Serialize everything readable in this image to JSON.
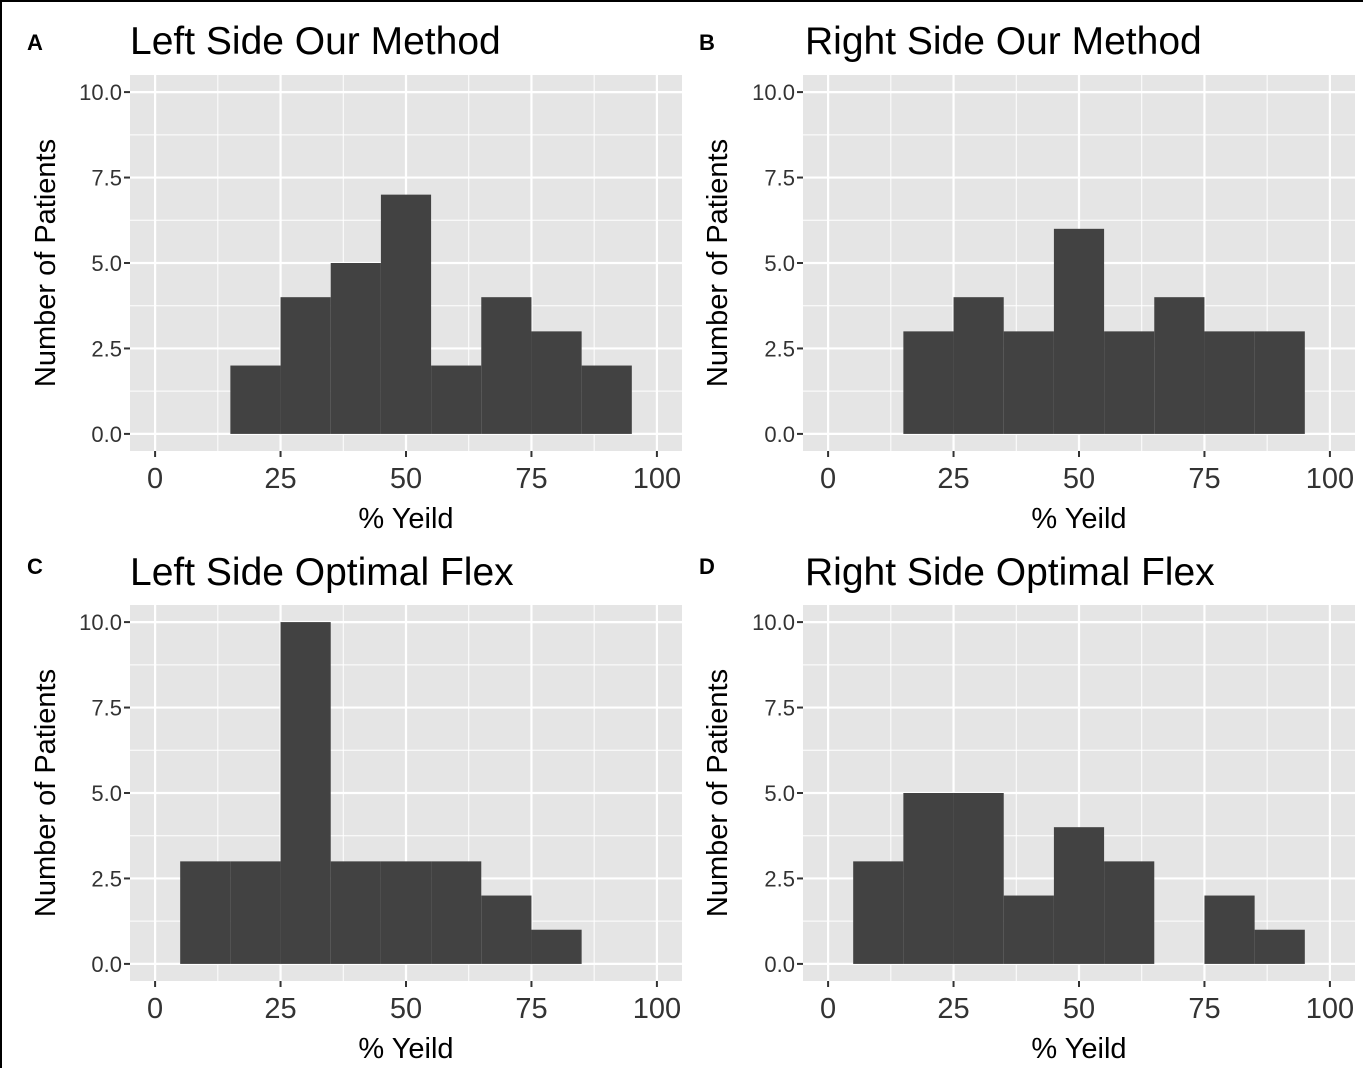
{
  "figure": {
    "background": "#ffffff",
    "panel_background": "#e5e5e5",
    "grid_color": "#ffffff",
    "bar_color": "#424242",
    "text_color": "#000000",
    "tick_color": "#333333"
  },
  "chart_data": [
    {
      "type": "bar",
      "letter": "A",
      "title": "Left Side Our Method",
      "xlabel": "% Yeild",
      "ylabel": "Number of Patients",
      "xlim": [
        -5,
        105
      ],
      "ylim": [
        -0.5,
        10.5
      ],
      "xticks": [
        0,
        25,
        50,
        75,
        100
      ],
      "xtick_labels": [
        "0",
        "25",
        "50",
        "75",
        "100"
      ],
      "yticks": [
        0,
        2.5,
        5,
        7.5,
        10
      ],
      "ytick_labels": [
        "0.0",
        "2.5",
        "5.0",
        "7.5",
        "10.0"
      ],
      "bin_width": 10,
      "bin_centers": [
        20,
        30,
        40,
        50,
        60,
        70,
        80,
        90
      ],
      "values": [
        2,
        4,
        5,
        7,
        2,
        4,
        3,
        2
      ],
      "grid": true
    },
    {
      "type": "bar",
      "letter": "B",
      "title": "Right Side Our Method",
      "xlabel": "% Yeild",
      "ylabel": "Number of Patients",
      "xlim": [
        -5,
        105
      ],
      "ylim": [
        -0.5,
        10.5
      ],
      "xticks": [
        0,
        25,
        50,
        75,
        100
      ],
      "xtick_labels": [
        "0",
        "25",
        "50",
        "75",
        "100"
      ],
      "yticks": [
        0,
        2.5,
        5,
        7.5,
        10
      ],
      "ytick_labels": [
        "0.0",
        "2.5",
        "5.0",
        "7.5",
        "10.0"
      ],
      "bin_width": 10,
      "bin_centers": [
        20,
        30,
        40,
        50,
        60,
        70,
        80,
        90
      ],
      "values": [
        3,
        4,
        3,
        6,
        3,
        4,
        3,
        3
      ],
      "grid": true
    },
    {
      "type": "bar",
      "letter": "C",
      "title": "Left Side Optimal Flex",
      "xlabel": "% Yeild",
      "ylabel": "Number of Patients",
      "xlim": [
        -5,
        105
      ],
      "ylim": [
        -0.5,
        10.5
      ],
      "xticks": [
        0,
        25,
        50,
        75,
        100
      ],
      "xtick_labels": [
        "0",
        "25",
        "50",
        "75",
        "100"
      ],
      "yticks": [
        0,
        2.5,
        5,
        7.5,
        10
      ],
      "ytick_labels": [
        "0.0",
        "2.5",
        "5.0",
        "7.5",
        "10.0"
      ],
      "bin_width": 10,
      "bin_centers": [
        10,
        20,
        30,
        40,
        50,
        60,
        70,
        80
      ],
      "values": [
        3,
        3,
        10,
        3,
        3,
        3,
        2,
        1
      ],
      "grid": true
    },
    {
      "type": "bar",
      "letter": "D",
      "title": "Right Side Optimal Flex",
      "xlabel": "% Yeild",
      "ylabel": "Number of Patients",
      "xlim": [
        -5,
        105
      ],
      "ylim": [
        -0.5,
        10.5
      ],
      "xticks": [
        0,
        25,
        50,
        75,
        100
      ],
      "xtick_labels": [
        "0",
        "25",
        "50",
        "75",
        "100"
      ],
      "yticks": [
        0,
        2.5,
        5,
        7.5,
        10
      ],
      "ytick_labels": [
        "0.0",
        "2.5",
        "5.0",
        "7.5",
        "10.0"
      ],
      "bin_width": 10,
      "bin_centers": [
        10,
        20,
        30,
        40,
        50,
        60,
        70,
        80,
        90
      ],
      "values": [
        3,
        5,
        5,
        2,
        4,
        3,
        0,
        2,
        1
      ],
      "grid": true
    }
  ]
}
